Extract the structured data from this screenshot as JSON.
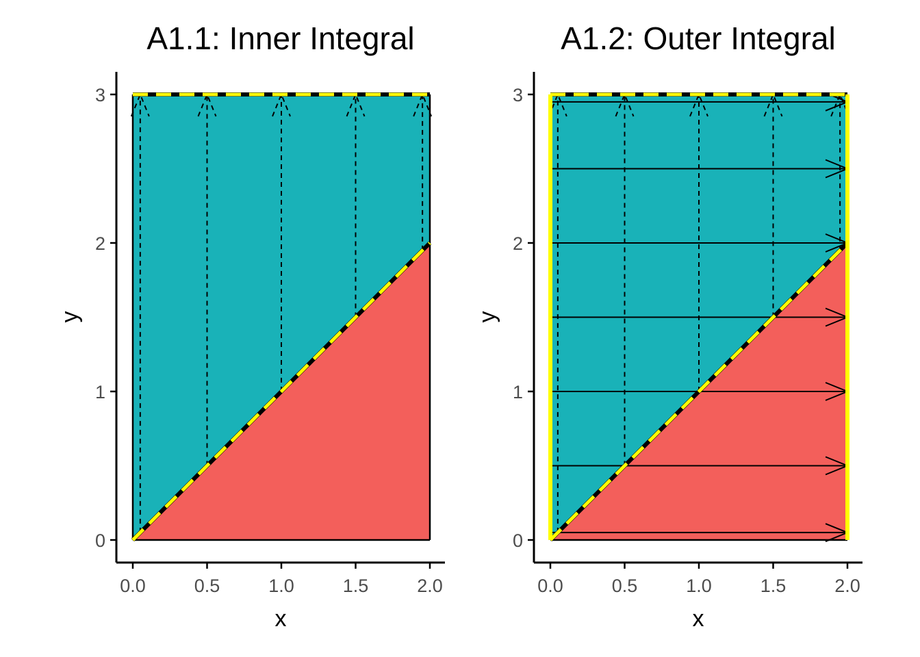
{
  "chart_data": [
    {
      "type": "area",
      "title": "A1.1: Inner Integral",
      "xlabel": "x",
      "ylabel": "y",
      "xlim": [
        0,
        2
      ],
      "ylim": [
        0,
        3
      ],
      "x_ticks": [
        "0.0",
        "0.5",
        "1.0",
        "1.5",
        "2.0"
      ],
      "y_ticks": [
        "0",
        "1",
        "2",
        "3"
      ],
      "regions": [
        {
          "fill": "#19b2b8",
          "polygon": [
            [
              0,
              0
            ],
            [
              0,
              3
            ],
            [
              2,
              3
            ],
            [
              2,
              2
            ]
          ]
        },
        {
          "fill": "#f35f5b",
          "polygon": [
            [
              0,
              0
            ],
            [
              2,
              2
            ],
            [
              2,
              0
            ]
          ]
        }
      ],
      "boundary_highlight": [
        {
          "from": [
            0,
            0
          ],
          "to": [
            2,
            2
          ]
        },
        {
          "from": [
            0,
            3
          ],
          "to": [
            2,
            3
          ]
        }
      ],
      "inner_arrows_dashed": [
        {
          "x": 0.05,
          "y_from": 0.05,
          "y_to": 3
        },
        {
          "x": 0.5,
          "y_from": 0.5,
          "y_to": 3
        },
        {
          "x": 1.0,
          "y_from": 1.0,
          "y_to": 3
        },
        {
          "x": 1.5,
          "y_from": 1.5,
          "y_to": 3
        },
        {
          "x": 1.95,
          "y_from": 1.95,
          "y_to": 3
        }
      ],
      "outer_arrows": [],
      "right_edge_highlight": false
    },
    {
      "type": "area",
      "title": "A1.2: Outer Integral",
      "xlabel": "x",
      "ylabel": "y",
      "xlim": [
        0,
        2
      ],
      "ylim": [
        0,
        3
      ],
      "x_ticks": [
        "0.0",
        "0.5",
        "1.0",
        "1.5",
        "2.0"
      ],
      "y_ticks": [
        "0",
        "1",
        "2",
        "3"
      ],
      "regions": [
        {
          "fill": "#19b2b8",
          "polygon": [
            [
              0,
              0
            ],
            [
              0,
              3
            ],
            [
              2,
              3
            ],
            [
              2,
              2
            ]
          ]
        },
        {
          "fill": "#f35f5b",
          "polygon": [
            [
              0,
              0
            ],
            [
              2,
              2
            ],
            [
              2,
              0
            ]
          ]
        }
      ],
      "boundary_highlight": [
        {
          "from": [
            0,
            0
          ],
          "to": [
            2,
            2
          ]
        },
        {
          "from": [
            0,
            3
          ],
          "to": [
            2,
            3
          ]
        }
      ],
      "inner_arrows_dashed": [
        {
          "x": 0.05,
          "y_from": 0.05,
          "y_to": 3
        },
        {
          "x": 0.5,
          "y_from": 0.5,
          "y_to": 3
        },
        {
          "x": 1.0,
          "y_from": 1.0,
          "y_to": 3
        },
        {
          "x": 1.5,
          "y_from": 1.5,
          "y_to": 3
        },
        {
          "x": 1.95,
          "y_from": 1.95,
          "y_to": 3
        }
      ],
      "outer_arrows": [
        {
          "y": 0.05,
          "x_from": 0,
          "x_to": 2
        },
        {
          "y": 0.5,
          "x_from": 0,
          "x_to": 2
        },
        {
          "y": 1.0,
          "x_from": 0,
          "x_to": 2
        },
        {
          "y": 1.5,
          "x_from": 0,
          "x_to": 2
        },
        {
          "y": 2.0,
          "x_from": 0,
          "x_to": 2
        },
        {
          "y": 2.5,
          "x_from": 0,
          "x_to": 2
        },
        {
          "y": 2.95,
          "x_from": 0,
          "x_to": 2
        }
      ],
      "right_edge_highlight": true
    }
  ],
  "colors": {
    "upper_region": "#19b2b8",
    "lower_region": "#f35f5b",
    "highlight": "#ffff00",
    "axis": "#000000",
    "tick_label": "#4d4d4d"
  }
}
